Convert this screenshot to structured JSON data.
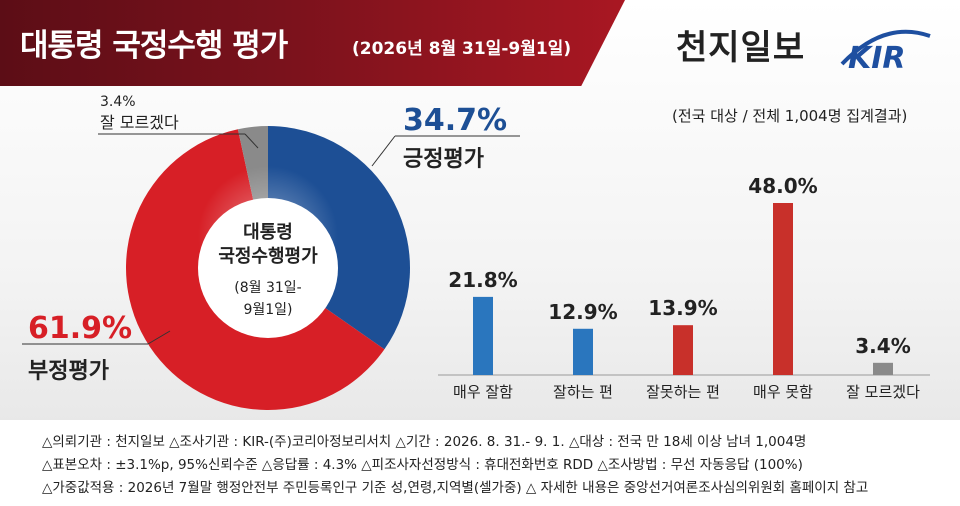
{
  "header": {
    "title": "대통령 국정수행 평가",
    "date": "(2026년 8월 31일-9월1일)",
    "publisher": "천지일보",
    "logo_text": "KIR",
    "scope": "(전국 대상 / 전체 1,004명 집계결과)"
  },
  "donut": {
    "center_title_line1": "대통령",
    "center_title_line2": "국정수행평가",
    "center_date_line1": "(8월 31일-",
    "center_date_line2": "9월1일)",
    "slices": [
      {
        "label": "긍정평가",
        "value_text": "34.7%",
        "value": 34.7,
        "color": "#1d4f95"
      },
      {
        "label": "부정평가",
        "value_text": "61.9%",
        "value": 61.9,
        "color": "#d71f26"
      },
      {
        "label": "잘 모르겠다",
        "value_text": "3.4%",
        "value": 3.4,
        "color": "#8a8a8a"
      }
    ]
  },
  "chart_data": {
    "type": "bar",
    "categories": [
      "매우 잘함",
      "잘하는 편",
      "잘못하는 편",
      "매우 못함",
      "잘 모르겠다"
    ],
    "values": [
      21.8,
      12.9,
      13.9,
      48.0,
      3.4
    ],
    "value_labels": [
      "21.8%",
      "12.9%",
      "13.9%",
      "48.0%",
      "3.4%"
    ],
    "colors": [
      "#2a76be",
      "#2a76be",
      "#c8302a",
      "#c8302a",
      "#8a8a8a"
    ],
    "unit": "%",
    "grid": false,
    "legend": "none"
  },
  "notes": [
    "△의뢰기관 : 천지일보   △조사기관 : KIR-(주)코리아정보리서치   △기간 : 2026. 8. 31.- 9. 1.  △대상 : 전국 만 18세 이상 남녀 1,004명",
    "△표본오차 : ±3.1%p, 95%신뢰수준  △응답률 : 4.3%  △피조사자선정방식 : 휴대전화번호 RDD  △조사방법 : 무선 자동응답 (100%)",
    "△가중값적용 : 2026년 7월말 행정안전부 주민등록인구 기준 성,연령,지역별(셀가중)  △ 자세한 내용은 중앙선거여론조사심의위원회 홈페이지 참고"
  ]
}
